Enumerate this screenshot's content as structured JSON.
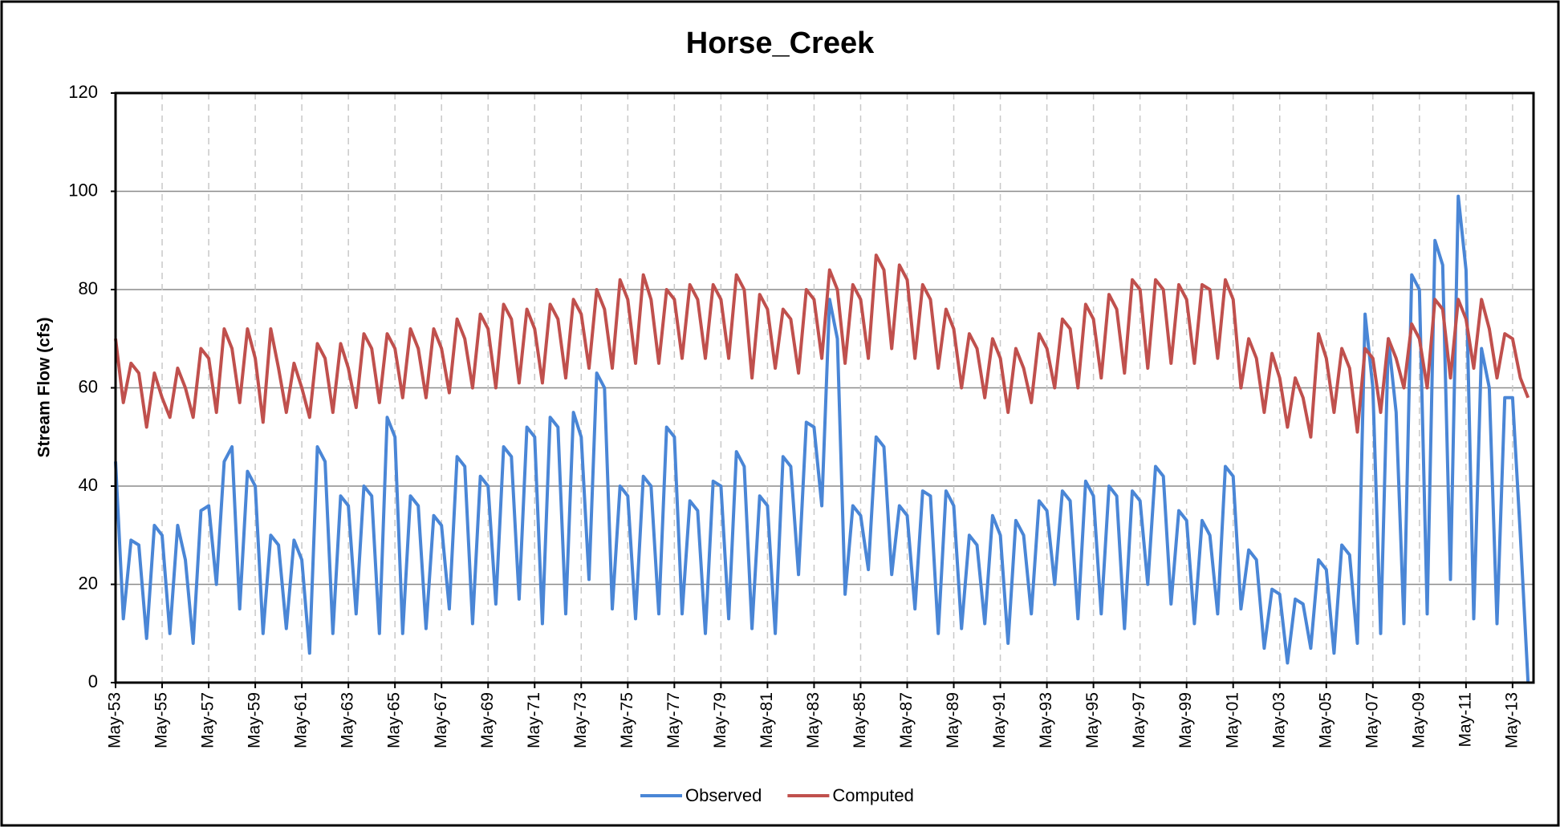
{
  "chart_data": {
    "type": "line",
    "title": "Horse_Creek",
    "y_label": "Stream Flow (cfs)",
    "x": [
      "May-53",
      null,
      null,
      null,
      null,
      null,
      "May-55",
      null,
      null,
      null,
      null,
      null,
      "May-57",
      null,
      null,
      null,
      null,
      null,
      "May-59",
      null,
      null,
      null,
      null,
      null,
      "May-61",
      null,
      null,
      null,
      null,
      null,
      "May-63",
      null,
      null,
      null,
      null,
      null,
      "May-65",
      null,
      null,
      null,
      null,
      null,
      "May-67",
      null,
      null,
      null,
      null,
      null,
      "May-69",
      null,
      null,
      null,
      null,
      null,
      "May-71",
      null,
      null,
      null,
      null,
      null,
      "May-73",
      null,
      null,
      null,
      null,
      null,
      "May-75",
      null,
      null,
      null,
      null,
      null,
      "May-77",
      null,
      null,
      null,
      null,
      null,
      "May-79",
      null,
      null,
      null,
      null,
      null,
      "May-81",
      null,
      null,
      null,
      null,
      null,
      "May-83",
      null,
      null,
      null,
      null,
      null,
      "May-85",
      null,
      null,
      null,
      null,
      null,
      "May-87",
      null,
      null,
      null,
      null,
      null,
      "May-89",
      null,
      null,
      null,
      null,
      null,
      "May-91",
      null,
      null,
      null,
      null,
      null,
      "May-93",
      null,
      null,
      null,
      null,
      null,
      "May-95",
      null,
      null,
      null,
      null,
      null,
      "May-97",
      null,
      null,
      null,
      null,
      null,
      "May-99",
      null,
      null,
      null,
      null,
      null,
      "May-01",
      null,
      null,
      null,
      null,
      null,
      "May-03",
      null,
      null,
      null,
      null,
      null,
      "May-05",
      null,
      null,
      null,
      null,
      null,
      "May-07",
      null,
      null,
      null,
      null,
      null,
      "May-09",
      null,
      null,
      null,
      null,
      null,
      "May-11",
      null,
      null,
      null,
      null,
      null,
      "May-13",
      null,
      null
    ],
    "series": [
      {
        "name": "Observed",
        "color": "#4a86d6",
        "values": [
          45,
          13,
          29,
          28,
          9,
          32,
          30,
          10,
          32,
          25,
          8,
          35,
          36,
          20,
          45,
          48,
          15,
          43,
          40,
          10,
          30,
          28,
          11,
          29,
          25,
          6,
          48,
          45,
          10,
          38,
          36,
          14,
          40,
          38,
          10,
          54,
          50,
          10,
          38,
          36,
          11,
          34,
          32,
          15,
          46,
          44,
          12,
          42,
          40,
          16,
          48,
          46,
          17,
          52,
          50,
          12,
          54,
          52,
          14,
          55,
          50,
          21,
          63,
          60,
          15,
          40,
          38,
          13,
          42,
          40,
          14,
          52,
          50,
          14,
          37,
          35,
          10,
          41,
          40,
          13,
          47,
          44,
          11,
          38,
          36,
          10,
          46,
          44,
          22,
          53,
          52,
          36,
          78,
          70,
          18,
          36,
          34,
          23,
          50,
          48,
          22,
          36,
          34,
          15,
          39,
          38,
          10,
          39,
          36,
          11,
          30,
          28,
          12,
          34,
          30,
          8,
          33,
          30,
          14,
          37,
          35,
          20,
          39,
          37,
          13,
          41,
          38,
          14,
          40,
          38,
          11,
          39,
          37,
          20,
          44,
          42,
          16,
          35,
          33,
          12,
          33,
          30,
          14,
          44,
          42,
          15,
          27,
          25,
          7,
          19,
          18,
          4,
          17,
          16,
          7,
          25,
          23,
          6,
          28,
          26,
          8,
          75,
          60,
          10,
          70,
          55,
          12,
          83,
          80,
          14,
          90,
          85,
          21,
          99,
          84,
          13,
          68,
          60,
          12,
          58,
          58,
          30,
          0
        ]
      },
      {
        "name": "Computed",
        "color": "#c0504d",
        "values": [
          70,
          57,
          65,
          63,
          52,
          63,
          58,
          54,
          64,
          60,
          54,
          68,
          66,
          55,
          72,
          68,
          57,
          72,
          66,
          53,
          72,
          64,
          55,
          65,
          60,
          54,
          69,
          66,
          55,
          69,
          64,
          56,
          71,
          68,
          57,
          71,
          68,
          58,
          72,
          68,
          58,
          72,
          68,
          59,
          74,
          70,
          60,
          75,
          72,
          60,
          77,
          74,
          61,
          76,
          72,
          61,
          77,
          74,
          62,
          78,
          75,
          64,
          80,
          76,
          64,
          82,
          78,
          65,
          83,
          78,
          65,
          80,
          78,
          66,
          81,
          78,
          66,
          81,
          78,
          66,
          83,
          80,
          62,
          79,
          76,
          64,
          76,
          74,
          63,
          80,
          78,
          66,
          84,
          80,
          65,
          81,
          78,
          66,
          87,
          84,
          68,
          85,
          82,
          66,
          81,
          78,
          64,
          76,
          72,
          60,
          71,
          68,
          58,
          70,
          66,
          55,
          68,
          64,
          57,
          71,
          68,
          60,
          74,
          72,
          60,
          77,
          74,
          62,
          79,
          76,
          63,
          82,
          80,
          64,
          82,
          80,
          65,
          81,
          78,
          65,
          81,
          80,
          66,
          82,
          78,
          60,
          70,
          66,
          55,
          67,
          62,
          52,
          62,
          58,
          50,
          71,
          66,
          55,
          68,
          64,
          51,
          68,
          66,
          55,
          70,
          66,
          60,
          73,
          70,
          60,
          78,
          76,
          62,
          78,
          74,
          64,
          78,
          72,
          62,
          71,
          70,
          62,
          58
        ]
      }
    ],
    "ylim": [
      0,
      120
    ],
    "yticks": [
      0,
      20,
      40,
      60,
      80,
      100,
      120
    ],
    "grid": true,
    "legend": "bottom"
  }
}
